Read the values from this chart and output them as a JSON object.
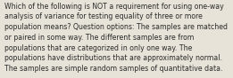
{
  "text_lines": [
    "Which of the following is NOT a requirement for using one-way",
    "analysis of variance for testing equality of three or more",
    "population means? Question options: The samples are matched",
    "or paired in some way. The different samples are from",
    "populations that are categorized in only one way. The",
    "populations have distributions that are approximately normal.",
    "The samples are simple random samples of quantitative data."
  ],
  "background_color": "#e8e3d8",
  "text_color": "#2a2a2a",
  "font_size": 5.55,
  "fig_width": 2.61,
  "fig_height": 0.88,
  "dpi": 100
}
